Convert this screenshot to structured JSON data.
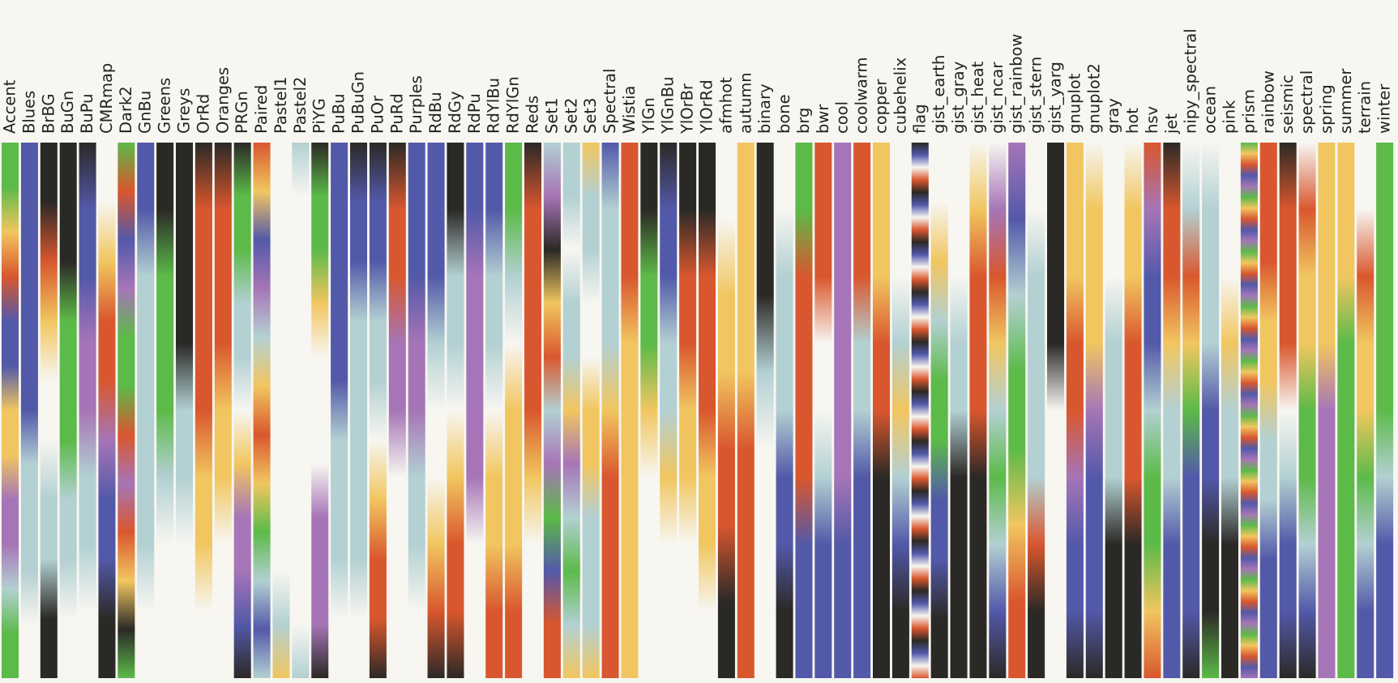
{
  "chart_data": {
    "type": "heatmap",
    "title": "",
    "xlabel": "",
    "ylabel": "",
    "grid": false,
    "legend": "none",
    "palette": {
      "R": "#d9572e",
      "Y": "#f1c660",
      "G": "#5cba49",
      "B": "#5359a9",
      "P": "#a675b7",
      "C": "#b3d0d2",
      "K": "#2b2926",
      "W": "#f7f6f1"
    },
    "colormaps": [
      {
        "name": "Accent",
        "stops": [
          "G",
          "G",
          "Y",
          "R",
          "B",
          "B",
          "Y",
          "Y",
          "P",
          "P",
          "C",
          "G",
          "G"
        ]
      },
      {
        "name": "Blues",
        "stops": [
          "B",
          "B",
          "B",
          "B",
          "B",
          "B",
          "C",
          "C",
          "C",
          "W",
          "W"
        ]
      },
      {
        "name": "BrBG",
        "stops": [
          "K",
          "K",
          "R",
          "Y",
          "W",
          "W",
          "C",
          "C",
          "K",
          "K"
        ]
      },
      {
        "name": "BuGn",
        "stops": [
          "K",
          "K",
          "K",
          "G",
          "G",
          "G",
          "C",
          "C",
          "W",
          "W"
        ]
      },
      {
        "name": "BuPu",
        "stops": [
          "K",
          "B",
          "B",
          "P",
          "P",
          "C",
          "C",
          "W",
          "W"
        ]
      },
      {
        "name": "CMRmap",
        "stops": [
          "W",
          "W",
          "Y",
          "R",
          "R",
          "P",
          "B",
          "B",
          "K",
          "K"
        ]
      },
      {
        "name": "Dark2",
        "stops": [
          "G",
          "R",
          "B",
          "P",
          "G",
          "G",
          "R",
          "P",
          "R",
          "Y",
          "K",
          "G"
        ]
      },
      {
        "name": "GnBu",
        "stops": [
          "B",
          "B",
          "C",
          "C",
          "C",
          "C",
          "C",
          "W",
          "W"
        ]
      },
      {
        "name": "Greens",
        "stops": [
          "K",
          "K",
          "G",
          "G",
          "G",
          "C",
          "W",
          "W",
          "W"
        ]
      },
      {
        "name": "Greys",
        "stops": [
          "K",
          "K",
          "K",
          "K",
          "C",
          "C",
          "W",
          "W",
          "W"
        ]
      },
      {
        "name": "OrRd",
        "stops": [
          "K",
          "R",
          "R",
          "R",
          "R",
          "Y",
          "Y",
          "W",
          "W"
        ]
      },
      {
        "name": "Oranges",
        "stops": [
          "K",
          "R",
          "R",
          "R",
          "Y",
          "Y",
          "W",
          "W",
          "W"
        ]
      },
      {
        "name": "PRGn",
        "stops": [
          "K",
          "G",
          "G",
          "C",
          "C",
          "W",
          "Y",
          "P",
          "P",
          "B",
          "K"
        ]
      },
      {
        "name": "Paired",
        "stops": [
          "R",
          "Y",
          "B",
          "P",
          "C",
          "Y",
          "R",
          "Y",
          "G",
          "C",
          "B",
          "C"
        ]
      },
      {
        "name": "Pastel1",
        "stops": [
          "W",
          "W",
          "W",
          "W",
          "W",
          "W",
          "W",
          "W",
          "W",
          "C",
          "Y"
        ]
      },
      {
        "name": "Pastel2",
        "stops": [
          "C",
          "W",
          "W",
          "W",
          "W",
          "W",
          "W",
          "W",
          "W",
          "W",
          "C"
        ]
      },
      {
        "name": "PiYG",
        "stops": [
          "K",
          "G",
          "G",
          "Y",
          "W",
          "W",
          "W",
          "P",
          "P",
          "P",
          "K"
        ]
      },
      {
        "name": "PuBu",
        "stops": [
          "B",
          "B",
          "B",
          "B",
          "B",
          "C",
          "C",
          "C",
          "W",
          "W"
        ]
      },
      {
        "name": "PuBuGn",
        "stops": [
          "K",
          "B",
          "B",
          "C",
          "C",
          "C",
          "C",
          "C",
          "W",
          "W"
        ]
      },
      {
        "name": "PuOr",
        "stops": [
          "K",
          "B",
          "B",
          "C",
          "C",
          "W",
          "Y",
          "R",
          "R",
          "K"
        ]
      },
      {
        "name": "PuRd",
        "stops": [
          "K",
          "R",
          "R",
          "P",
          "P",
          "W",
          "W",
          "W",
          "W"
        ]
      },
      {
        "name": "Purples",
        "stops": [
          "B",
          "B",
          "B",
          "P",
          "P",
          "C",
          "C",
          "W",
          "W"
        ]
      },
      {
        "name": "RdBu",
        "stops": [
          "B",
          "B",
          "B",
          "C",
          "W",
          "W",
          "Y",
          "R",
          "K"
        ]
      },
      {
        "name": "RdGy",
        "stops": [
          "K",
          "K",
          "C",
          "C",
          "W",
          "Y",
          "R",
          "R",
          "K"
        ]
      },
      {
        "name": "RdPu",
        "stops": [
          "B",
          "B",
          "P",
          "P",
          "P",
          "P",
          "W",
          "W",
          "W"
        ]
      },
      {
        "name": "RdYlBu",
        "stops": [
          "B",
          "B",
          "C",
          "C",
          "W",
          "Y",
          "Y",
          "R",
          "R"
        ]
      },
      {
        "name": "RdYlGn",
        "stops": [
          "G",
          "G",
          "C",
          "W",
          "Y",
          "Y",
          "Y",
          "R",
          "R"
        ]
      },
      {
        "name": "Reds",
        "stops": [
          "K",
          "R",
          "R",
          "R",
          "R",
          "Y",
          "W",
          "W",
          "W"
        ]
      },
      {
        "name": "Set1",
        "stops": [
          "C",
          "P",
          "K",
          "Y",
          "R",
          "C",
          "P",
          "G",
          "B",
          "R",
          "R"
        ]
      },
      {
        "name": "Set2",
        "stops": [
          "C",
          "C",
          "W",
          "C",
          "C",
          "Y",
          "P",
          "C",
          "G",
          "C",
          "Y"
        ]
      },
      {
        "name": "Set3",
        "stops": [
          "Y",
          "C",
          "C",
          "W",
          "W",
          "Y",
          "Y",
          "C",
          "C",
          "C",
          "Y"
        ]
      },
      {
        "name": "Spectral",
        "stops": [
          "B",
          "C",
          "C",
          "C",
          "Y",
          "R",
          "R",
          "R",
          "R"
        ]
      },
      {
        "name": "Wistia",
        "stops": [
          "R",
          "R",
          "R",
          "Y",
          "Y",
          "Y",
          "Y",
          "Y",
          "Y"
        ]
      },
      {
        "name": "YlGn",
        "stops": [
          "K",
          "K",
          "G",
          "G",
          "Y",
          "W",
          "W",
          "W",
          "W"
        ]
      },
      {
        "name": "YlGnBu",
        "stops": [
          "K",
          "B",
          "B",
          "C",
          "C",
          "Y",
          "W",
          "W",
          "W"
        ]
      },
      {
        "name": "YlOrBr",
        "stops": [
          "K",
          "K",
          "R",
          "R",
          "Y",
          "Y",
          "W",
          "W",
          "W"
        ]
      },
      {
        "name": "YlOrRd",
        "stops": [
          "K",
          "K",
          "R",
          "R",
          "R",
          "Y",
          "Y",
          "W",
          "W"
        ]
      },
      {
        "name": "afmhot",
        "stops": [
          "W",
          "W",
          "Y",
          "Y",
          "R",
          "R",
          "K",
          "K"
        ]
      },
      {
        "name": "autumn",
        "stops": [
          "Y",
          "Y",
          "Y",
          "Y",
          "R",
          "R",
          "R",
          "R"
        ]
      },
      {
        "name": "binary",
        "stops": [
          "K",
          "K",
          "K",
          "C",
          "W",
          "W",
          "W",
          "W"
        ]
      },
      {
        "name": "bone",
        "stops": [
          "W",
          "W",
          "C",
          "C",
          "C",
          "B",
          "B",
          "K",
          "K"
        ]
      },
      {
        "name": "brg",
        "stops": [
          "G",
          "G",
          "R",
          "R",
          "R",
          "R",
          "B",
          "B",
          "B"
        ]
      },
      {
        "name": "bwr",
        "stops": [
          "R",
          "R",
          "R",
          "W",
          "W",
          "C",
          "B",
          "B",
          "B"
        ]
      },
      {
        "name": "cool",
        "stops": [
          "P",
          "P",
          "P",
          "P",
          "P",
          "P",
          "B",
          "B",
          "B"
        ]
      },
      {
        "name": "coolwarm",
        "stops": [
          "R",
          "R",
          "R",
          "C",
          "C",
          "B",
          "B",
          "B",
          "B"
        ]
      },
      {
        "name": "copper",
        "stops": [
          "Y",
          "Y",
          "Y",
          "R",
          "R",
          "K",
          "K",
          "K",
          "K"
        ]
      },
      {
        "name": "cubehelix",
        "stops": [
          "W",
          "W",
          "W",
          "C",
          "Y",
          "C",
          "B",
          "K",
          "K"
        ]
      },
      {
        "name": "flag",
        "stops": [
          "K",
          "B",
          "W",
          "R",
          "K",
          "B",
          "W",
          "R",
          "K",
          "B",
          "W",
          "R",
          "K",
          "B",
          "W",
          "R",
          "K",
          "B",
          "W",
          "R",
          "K",
          "B",
          "W",
          "R",
          "K",
          "B",
          "W",
          "R",
          "K",
          "B",
          "W",
          "R",
          "K",
          "B",
          "W",
          "R",
          "K",
          "B",
          "W",
          "R",
          "K",
          "B",
          "W",
          "R"
        ]
      },
      {
        "name": "gist_earth",
        "stops": [
          "W",
          "W",
          "Y",
          "C",
          "G",
          "G",
          "B",
          "B",
          "K",
          "K"
        ]
      },
      {
        "name": "gist_gray",
        "stops": [
          "W",
          "W",
          "W",
          "C",
          "C",
          "K",
          "K",
          "K",
          "K"
        ]
      },
      {
        "name": "gist_heat",
        "stops": [
          "W",
          "Y",
          "R",
          "R",
          "R",
          "K",
          "K",
          "K",
          "K"
        ]
      },
      {
        "name": "gist_ncar",
        "stops": [
          "W",
          "P",
          "R",
          "Y",
          "C",
          "G",
          "C",
          "B",
          "K"
        ]
      },
      {
        "name": "gist_rainbow",
        "stops": [
          "P",
          "B",
          "C",
          "G",
          "G",
          "Y",
          "R",
          "R"
        ]
      },
      {
        "name": "gist_stern",
        "stops": [
          "W",
          "W",
          "C",
          "C",
          "C",
          "C",
          "R",
          "K",
          "K"
        ]
      },
      {
        "name": "gist_yarg",
        "stops": [
          "K",
          "K",
          "K",
          "K",
          "W",
          "W",
          "W",
          "W",
          "W"
        ]
      },
      {
        "name": "gnuplot",
        "stops": [
          "Y",
          "Y",
          "Y",
          "R",
          "R",
          "P",
          "B",
          "B",
          "K"
        ]
      },
      {
        "name": "gnuplot2",
        "stops": [
          "W",
          "Y",
          "Y",
          "Y",
          "P",
          "B",
          "B",
          "B",
          "K"
        ]
      },
      {
        "name": "gray",
        "stops": [
          "W",
          "W",
          "W",
          "C",
          "C",
          "C",
          "K",
          "K",
          "K"
        ]
      },
      {
        "name": "hot",
        "stops": [
          "W",
          "Y",
          "Y",
          "R",
          "R",
          "R",
          "K",
          "K",
          "K"
        ]
      },
      {
        "name": "hsv",
        "stops": [
          "R",
          "P",
          "B",
          "B",
          "C",
          "G",
          "G",
          "Y",
          "R"
        ]
      },
      {
        "name": "jet",
        "stops": [
          "K",
          "R",
          "R",
          "Y",
          "C",
          "C",
          "B",
          "B",
          "B"
        ]
      },
      {
        "name": "nipy_spectral",
        "stops": [
          "W",
          "C",
          "R",
          "Y",
          "G",
          "B",
          "B",
          "B",
          "K"
        ]
      },
      {
        "name": "ocean",
        "stops": [
          "W",
          "C",
          "C",
          "C",
          "B",
          "B",
          "K",
          "K",
          "G"
        ]
      },
      {
        "name": "pink",
        "stops": [
          "W",
          "W",
          "W",
          "Y",
          "C",
          "C",
          "K",
          "K",
          "K"
        ]
      },
      {
        "name": "prism",
        "stops": [
          "G",
          "Y",
          "R",
          "B",
          "P",
          "G",
          "Y",
          "R",
          "B",
          "P",
          "G",
          "Y",
          "R",
          "B",
          "P",
          "G",
          "Y",
          "R",
          "B",
          "P",
          "G",
          "Y",
          "R",
          "B",
          "P",
          "G",
          "Y",
          "R",
          "B",
          "P",
          "G",
          "Y",
          "R",
          "B",
          "P",
          "G",
          "Y",
          "R",
          "B",
          "P",
          "G",
          "Y",
          "R",
          "B",
          "P",
          "G",
          "Y",
          "R",
          "B",
          "P"
        ]
      },
      {
        "name": "rainbow",
        "stops": [
          "R",
          "R",
          "R",
          "Y",
          "Y",
          "C",
          "C",
          "B",
          "B",
          "B"
        ]
      },
      {
        "name": "seismic",
        "stops": [
          "K",
          "R",
          "R",
          "R",
          "W",
          "C",
          "B",
          "B",
          "K"
        ]
      },
      {
        "name": "spectral",
        "stops": [
          "W",
          "R",
          "Y",
          "Y",
          "G",
          "G",
          "C",
          "B",
          "K"
        ]
      },
      {
        "name": "spring",
        "stops": [
          "Y",
          "Y",
          "Y",
          "Y",
          "P",
          "P",
          "P",
          "P",
          "P"
        ]
      },
      {
        "name": "summer",
        "stops": [
          "Y",
          "Y",
          "Y",
          "G",
          "G",
          "G",
          "G",
          "G",
          "G"
        ]
      },
      {
        "name": "terrain",
        "stops": [
          "W",
          "W",
          "R",
          "Y",
          "Y",
          "G",
          "C",
          "B",
          "B"
        ]
      },
      {
        "name": "winter",
        "stops": [
          "G",
          "G",
          "G",
          "G",
          "G",
          "C",
          "B",
          "B",
          "B"
        ]
      }
    ]
  }
}
